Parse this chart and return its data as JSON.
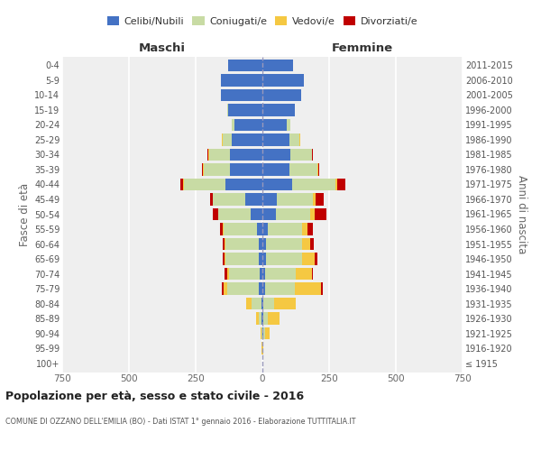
{
  "age_groups": [
    "100+",
    "95-99",
    "90-94",
    "85-89",
    "80-84",
    "75-79",
    "70-74",
    "65-69",
    "60-64",
    "55-59",
    "50-54",
    "45-49",
    "40-44",
    "35-39",
    "30-34",
    "25-29",
    "20-24",
    "15-19",
    "10-14",
    "5-9",
    "0-4"
  ],
  "birth_years": [
    "≤ 1915",
    "1916-1920",
    "1921-1925",
    "1926-1930",
    "1931-1935",
    "1936-1940",
    "1941-1945",
    "1946-1950",
    "1951-1955",
    "1956-1960",
    "1961-1965",
    "1966-1970",
    "1971-1975",
    "1976-1980",
    "1981-1985",
    "1986-1990",
    "1991-1995",
    "1996-2000",
    "2001-2005",
    "2006-2010",
    "2011-2015"
  ],
  "males": {
    "celibe": [
      0,
      0,
      0,
      2,
      5,
      12,
      10,
      12,
      15,
      20,
      45,
      65,
      140,
      120,
      120,
      115,
      105,
      130,
      155,
      155,
      130
    ],
    "coniugato": [
      0,
      1,
      3,
      12,
      35,
      120,
      115,
      125,
      125,
      125,
      120,
      120,
      155,
      100,
      80,
      35,
      10,
      2,
      0,
      0,
      0
    ],
    "vedovo": [
      0,
      1,
      5,
      10,
      20,
      12,
      8,
      5,
      3,
      3,
      2,
      2,
      2,
      2,
      2,
      2,
      0,
      0,
      0,
      0,
      0
    ],
    "divorziato": [
      0,
      0,
      0,
      0,
      0,
      8,
      10,
      5,
      5,
      12,
      18,
      10,
      12,
      5,
      5,
      0,
      0,
      0,
      0,
      0,
      0
    ]
  },
  "females": {
    "nubile": [
      0,
      0,
      3,
      4,
      5,
      10,
      10,
      12,
      15,
      20,
      50,
      55,
      110,
      100,
      105,
      100,
      90,
      120,
      145,
      155,
      115
    ],
    "coniugata": [
      0,
      1,
      8,
      15,
      40,
      110,
      115,
      135,
      135,
      130,
      130,
      135,
      165,
      105,
      80,
      40,
      15,
      2,
      0,
      0,
      0
    ],
    "vedova": [
      1,
      3,
      15,
      45,
      80,
      100,
      60,
      50,
      30,
      20,
      15,
      10,
      5,
      3,
      2,
      2,
      0,
      0,
      0,
      0,
      0
    ],
    "divorziata": [
      0,
      0,
      0,
      0,
      0,
      5,
      5,
      10,
      12,
      20,
      45,
      30,
      30,
      5,
      3,
      0,
      0,
      0,
      0,
      0,
      0
    ]
  },
  "colors": {
    "celibe": "#4472C4",
    "coniugato": "#C8DBA4",
    "vedovo": "#F5C842",
    "divorziato": "#C00000"
  },
  "xlim": 750,
  "title": "Popolazione per età, sesso e stato civile - 2016",
  "subtitle": "COMUNE DI OZZANO DELL'EMILIA (BO) - Dati ISTAT 1° gennaio 2016 - Elaborazione TUTTITALIA.IT",
  "xlabel_left": "Maschi",
  "xlabel_right": "Femmine",
  "ylabel_left": "Fasce di età",
  "ylabel_right": "Anni di nascita",
  "legend_labels": [
    "Celibi/Nubili",
    "Coniugati/e",
    "Vedovi/e",
    "Divorziati/e"
  ],
  "background_color": "#efefef"
}
